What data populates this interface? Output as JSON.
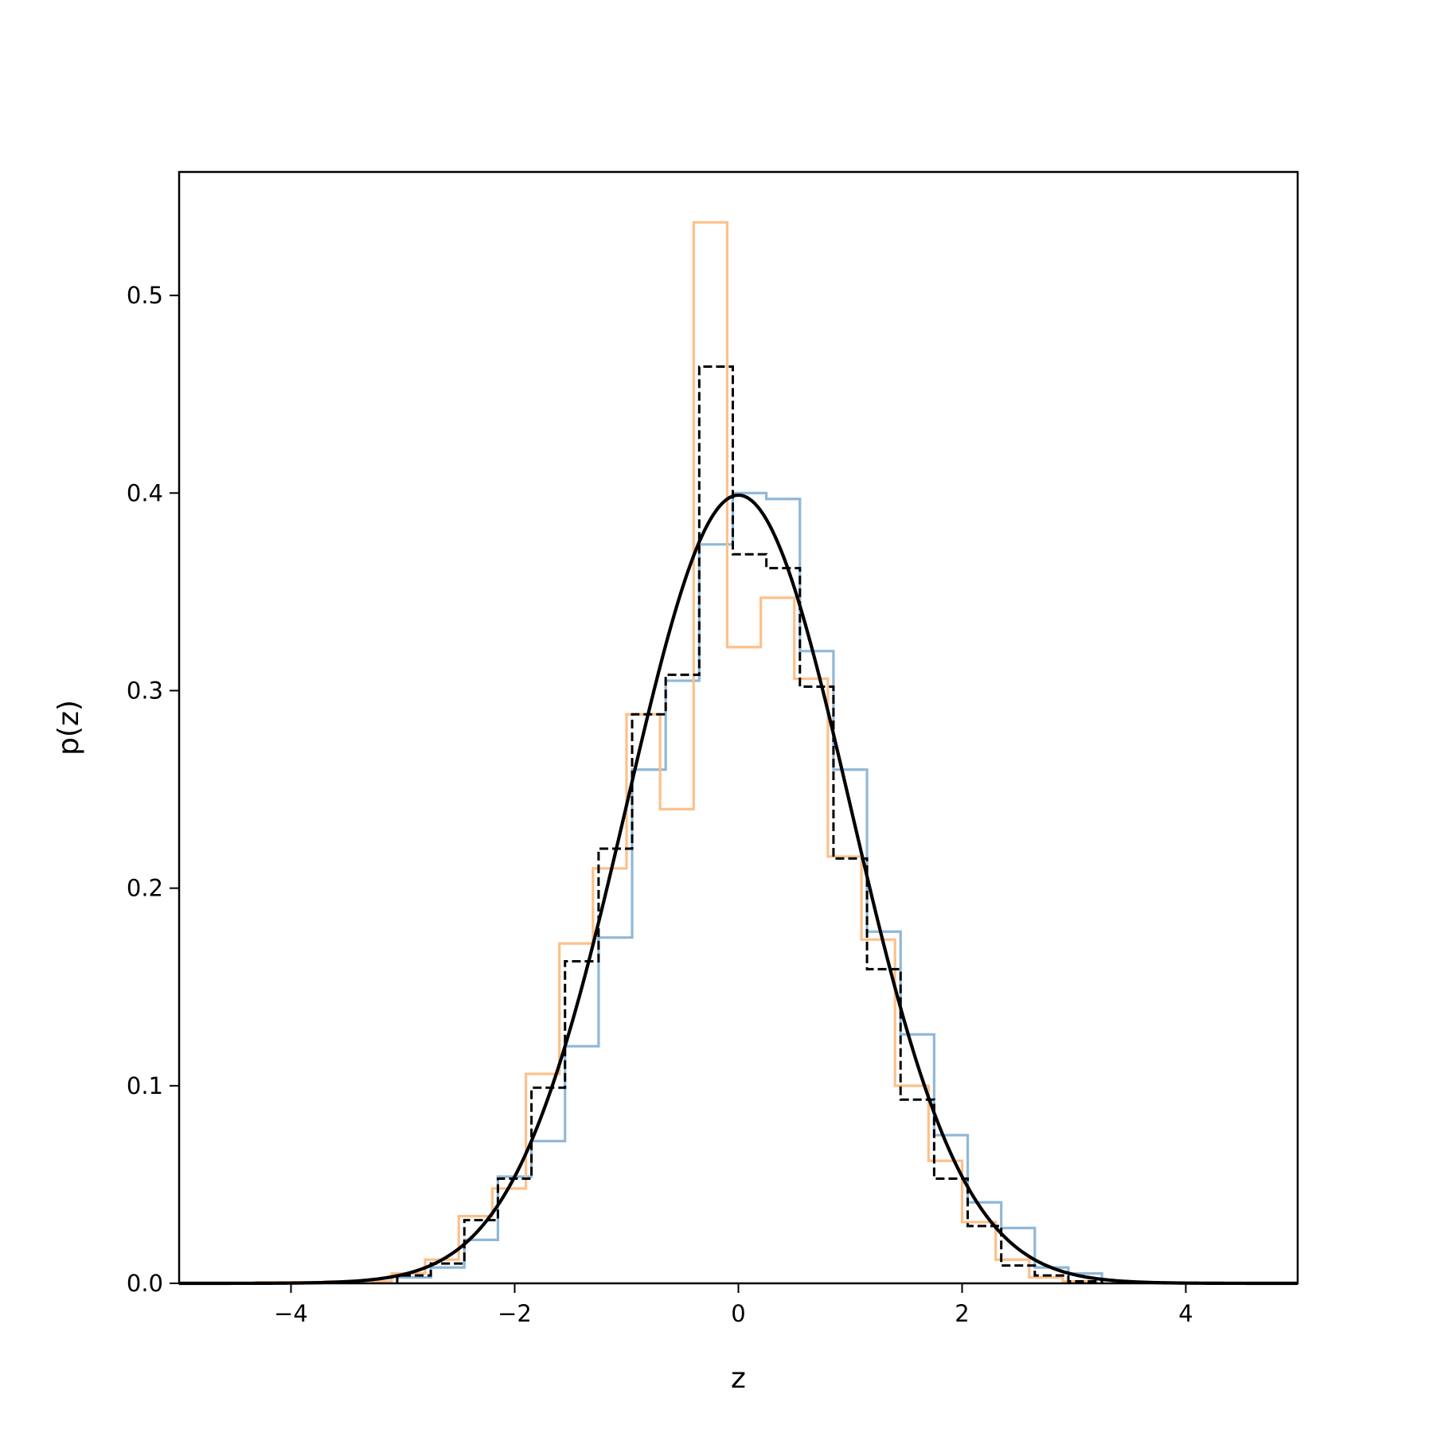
{
  "chart_data": {
    "type": "histogram",
    "title": "",
    "xlabel": "z",
    "ylabel": "p(z)",
    "xlim": [
      -5,
      5
    ],
    "ylim": [
      0,
      0.5625
    ],
    "xticks": [
      -4,
      -2,
      0,
      2,
      4
    ],
    "xtick_labels": [
      "−4",
      "−2",
      "0",
      "2",
      "4"
    ],
    "yticks": [
      0.0,
      0.1,
      0.2,
      0.3,
      0.4,
      0.5
    ],
    "ytick_labels": [
      "0.0",
      "0.1",
      "0.2",
      "0.3",
      "0.4",
      "0.5"
    ],
    "grid": false,
    "legend": "none",
    "series": [
      {
        "style": "step-solid",
        "color": "#8fb8d8",
        "bin_edges": [
          -3.05,
          -2.75,
          -2.45,
          -2.15,
          -1.85,
          -1.55,
          -1.25,
          -0.95,
          -0.65,
          -0.35,
          -0.05,
          0.25,
          0.55,
          0.85,
          1.15,
          1.45,
          1.75,
          2.05,
          2.35,
          2.65,
          2.95,
          3.25
        ],
        "values": [
          0.003,
          0.008,
          0.022,
          0.054,
          0.072,
          0.12,
          0.175,
          0.26,
          0.305,
          0.374,
          0.4,
          0.397,
          0.32,
          0.26,
          0.178,
          0.126,
          0.075,
          0.041,
          0.028,
          0.008,
          0.005
        ]
      },
      {
        "style": "step-solid",
        "color": "#fdc08a",
        "bin_edges": [
          -4.3,
          -3.7,
          -3.1,
          -2.8,
          -2.5,
          -2.2,
          -1.9,
          -1.6,
          -1.3,
          -1.0,
          -0.7,
          -0.4,
          -0.1,
          0.2,
          0.5,
          0.8,
          1.1,
          1.4,
          1.7,
          2.0,
          2.3,
          2.6,
          2.9,
          3.2
        ],
        "values": [
          0.0005,
          0.001,
          0.005,
          0.012,
          0.034,
          0.048,
          0.106,
          0.172,
          0.21,
          0.288,
          0.24,
          0.537,
          0.322,
          0.347,
          0.306,
          0.216,
          0.174,
          0.1,
          0.062,
          0.031,
          0.012,
          0.003,
          0.001
        ]
      },
      {
        "style": "step-dashed",
        "color": "#000000",
        "bin_edges": [
          -3.05,
          -2.75,
          -2.45,
          -2.15,
          -1.85,
          -1.55,
          -1.25,
          -0.95,
          -0.65,
          -0.35,
          -0.05,
          0.25,
          0.55,
          0.85,
          1.15,
          1.45,
          1.75,
          2.05,
          2.35,
          2.65,
          2.95,
          3.25
        ],
        "values": [
          0.004,
          0.01,
          0.032,
          0.053,
          0.099,
          0.163,
          0.22,
          0.288,
          0.308,
          0.464,
          0.369,
          0.362,
          0.302,
          0.215,
          0.159,
          0.093,
          0.053,
          0.029,
          0.009,
          0.004,
          0.001
        ]
      },
      {
        "style": "line",
        "color": "#000000",
        "function": "standard-normal-pdf",
        "x_range": [
          -5,
          5
        ]
      }
    ]
  }
}
